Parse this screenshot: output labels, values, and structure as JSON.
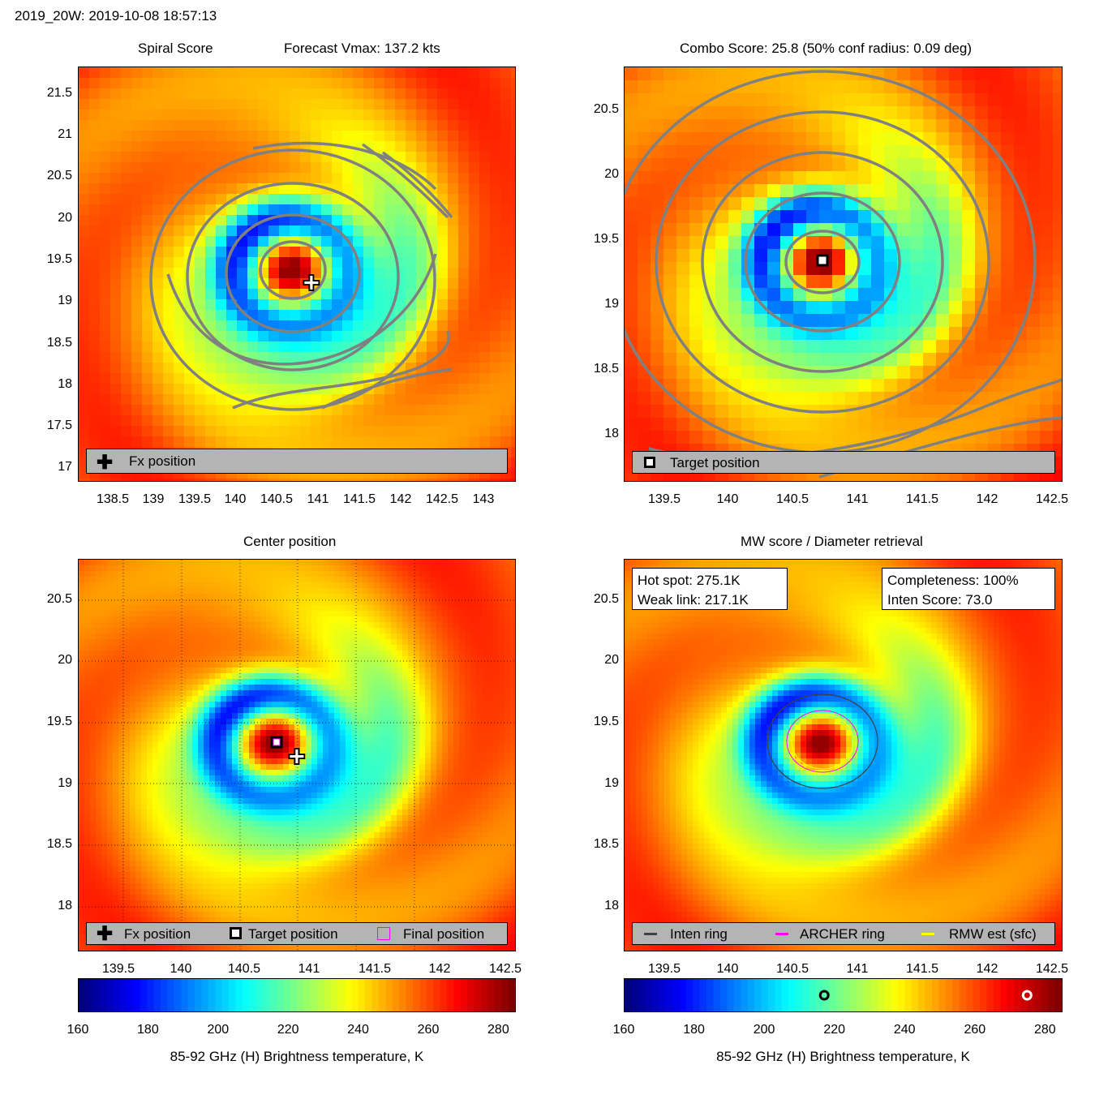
{
  "figure_title": "2019_20W: 2019-10-08 18:57:13",
  "panels": {
    "spiral": {
      "title_left": "Spiral Score",
      "title_right": "Forecast Vmax: 137.2 kts",
      "legend": [
        "Fx position"
      ],
      "yticks": [
        "21.5",
        "21",
        "20.5",
        "20",
        "19.5",
        "19",
        "18.5",
        "18",
        "17.5",
        "17"
      ],
      "xticks": [
        "138.5",
        "139",
        "139.5",
        "140",
        "140.5",
        "141",
        "141.5",
        "142",
        "142.5",
        "143"
      ]
    },
    "combo": {
      "title": "Combo Score: 25.8  (50% conf radius: 0.09 deg)",
      "legend": [
        "Target position"
      ],
      "yticks": [
        "20.5",
        "20",
        "19.5",
        "19",
        "18.5",
        "18"
      ],
      "xticks": [
        "139.5",
        "140",
        "140.5",
        "141",
        "141.5",
        "142",
        "142.5"
      ]
    },
    "center": {
      "title": "Center position",
      "legend": [
        "Fx position",
        "Target position",
        "Final position"
      ],
      "yticks": [
        "20.5",
        "20",
        "19.5",
        "19",
        "18.5",
        "18"
      ],
      "xticks": [
        "139.5",
        "140",
        "140.5",
        "141",
        "141.5",
        "142",
        "142.5"
      ]
    },
    "mw": {
      "title": "MW score / Diameter retrieval",
      "info_left": [
        "Hot spot: 275.1K",
        "Weak link: 217.1K"
      ],
      "info_right": [
        "Completeness: 100%",
        "Inten Score: 73.0"
      ],
      "legend": [
        "Inten ring",
        "ARCHER ring",
        "RMW est (sfc)"
      ],
      "yticks": [
        "20.5",
        "20",
        "19.5",
        "19",
        "18.5",
        "18"
      ],
      "xticks": [
        "139.5",
        "140",
        "140.5",
        "141",
        "141.5",
        "142",
        "142.5"
      ]
    }
  },
  "colorbar": {
    "ticks": [
      "160",
      "180",
      "200",
      "220",
      "240",
      "260",
      "280"
    ],
    "label": "85-92 GHz (H) Brightness temperature, K",
    "range": [
      160,
      285
    ],
    "markers_K": [
      217.1,
      275.1
    ]
  },
  "colors": {
    "contour": "#808080",
    "legend_bg": "#b4b4b4",
    "archer_ring": "#ff00ff",
    "rmw_ring": "#ffff00",
    "inten_ring": "#404040"
  },
  "chart_data": [
    {
      "type": "heatmap",
      "name_ref": "Spiral Score",
      "xlim": [
        138.05,
        143.4
      ],
      "ylim": [
        16.85,
        21.85
      ],
      "fx_position": {
        "lon": 140.92,
        "lat": 19.24
      },
      "forecast_vmax_kts": 137.2
    },
    {
      "type": "heatmap",
      "name_ref": "Combo Score",
      "xlim": [
        139.25,
        142.62
      ],
      "ylim": [
        17.75,
        20.82
      ],
      "target_position": {
        "lon": 140.72,
        "lat": 19.34
      },
      "combo_score": 25.8,
      "conf_radius_deg": 0.09
    },
    {
      "type": "heatmap",
      "name_ref": "Center position",
      "xlim": [
        139.25,
        142.62
      ],
      "ylim": [
        17.75,
        20.82
      ],
      "fx_position": {
        "lon": 140.9,
        "lat": 19.23
      },
      "target_position": {
        "lon": 140.72,
        "lat": 19.33
      }
    },
    {
      "type": "heatmap",
      "name_ref": "MW score / Diameter retrieval",
      "xlim": [
        139.25,
        142.62
      ],
      "ylim": [
        17.75,
        20.82
      ],
      "hot_spot_K": 275.1,
      "weak_link_K": 217.1,
      "completeness_pct": 100,
      "inten_score": 73.0
    }
  ]
}
